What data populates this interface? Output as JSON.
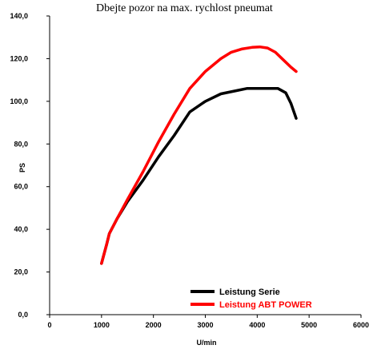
{
  "header_text": "Dbejte pozor na max. rychlost pneumat",
  "chart_data": {
    "type": "line",
    "title": "",
    "xlabel": "U/min",
    "ylabel": "PS",
    "xlim": [
      0,
      6000
    ],
    "ylim": [
      0,
      140
    ],
    "x_ticks": [
      0,
      1000,
      2000,
      3000,
      4000,
      5000,
      6000
    ],
    "x_tick_labels": [
      "0",
      "1000",
      "2000",
      "3000",
      "4000",
      "5000",
      "6000"
    ],
    "y_ticks": [
      0,
      20,
      40,
      60,
      80,
      100,
      120,
      140
    ],
    "y_tick_labels": [
      "0,0",
      "20,0",
      "40,0",
      "60,0",
      "80,0",
      "100,0",
      "120,0",
      "140,0"
    ],
    "grid": false,
    "legend_position": "bottom-right",
    "series": [
      {
        "name": "Leistung Serie",
        "color": "#000000",
        "x": [
          1000,
          1100,
          1150,
          1300,
          1500,
          1800,
          2100,
          2400,
          2700,
          3000,
          3300,
          3600,
          3800,
          4000,
          4200,
          4400,
          4550,
          4650,
          4750
        ],
        "y": [
          24,
          33,
          38,
          45,
          53,
          63,
          74,
          84,
          95,
          100,
          103.5,
          105,
          106,
          106,
          106,
          106,
          104,
          99,
          92
        ]
      },
      {
        "name": "Leistung ABT POWER",
        "color": "#ff0000",
        "x": [
          1000,
          1100,
          1150,
          1300,
          1500,
          1800,
          2100,
          2400,
          2700,
          3000,
          3300,
          3500,
          3700,
          3900,
          4050,
          4200,
          4350,
          4500,
          4650,
          4750
        ],
        "y": [
          24,
          33,
          38,
          45,
          54,
          67,
          81,
          94,
          106,
          114,
          120,
          123,
          124.5,
          125.3,
          125.5,
          125,
          123,
          119.5,
          116,
          114
        ]
      }
    ]
  }
}
